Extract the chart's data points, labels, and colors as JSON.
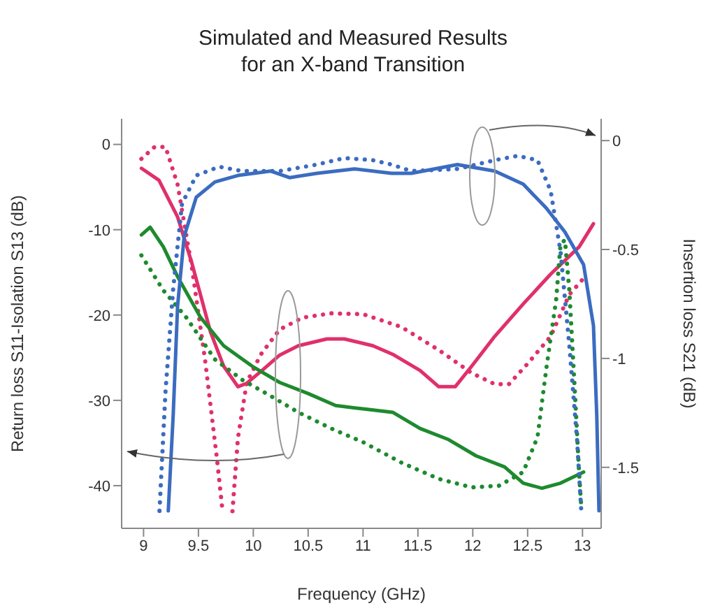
{
  "chart_data": {
    "type": "line",
    "title": "Simulated and Measured Results\nfor an X-band Transition",
    "xlabel": "Frequency (GHz)",
    "ylabel": "Return loss S11-Isolation S13 (dB)",
    "y2label": "Insertion loss S21 (dB)",
    "xlim": [
      8.8,
      13.17
    ],
    "xticks": [
      9,
      9.5,
      10,
      10.5,
      11,
      11.5,
      12,
      12.5,
      13
    ],
    "ylim": [
      -45,
      3
    ],
    "yticks": [
      0,
      -10,
      -20,
      -30,
      -40
    ],
    "y2lim": [
      -1.78,
      0.1
    ],
    "y2ticks": [
      0,
      -0.5,
      -1,
      -1.5
    ],
    "grid": false,
    "legend": false,
    "marker": "none",
    "series": [
      {
        "color": "#e0306a",
        "line_style": "solid",
        "x": [
          8.98,
          9.14,
          9.31,
          9.44,
          9.52,
          9.61,
          9.73,
          9.86,
          9.94,
          10.07,
          10.24,
          10.41,
          10.67,
          10.83,
          11.09,
          11.27,
          11.52,
          11.69,
          11.84,
          11.99,
          12.2,
          12.46,
          12.71,
          12.97,
          13.1
        ],
        "values": [
          -2.8,
          -4.2,
          -8.5,
          -13.9,
          -17.7,
          -22,
          -26,
          -28.4,
          -28,
          -26.6,
          -24.7,
          -23.6,
          -22.8,
          -22.8,
          -23.6,
          -24.6,
          -26.5,
          -28.4,
          -28.4,
          -26,
          -22.5,
          -18.7,
          -15.2,
          -12,
          -9.3
        ]
      },
      {
        "color": "#e0306a",
        "line_style": "dotted",
        "x": [
          8.98,
          9.1,
          9.2,
          9.31,
          9.44,
          9.56,
          9.67,
          9.72,
          9.765,
          9.81,
          9.86,
          9.94,
          10.07,
          10.24,
          10.45,
          10.71,
          11.0,
          11.35,
          11.69,
          11.99,
          12.2,
          12.33,
          12.5,
          12.71,
          12.88,
          13.01
        ],
        "values": [
          -1.7,
          -0.3,
          -0.3,
          -4.7,
          -14.4,
          -25.2,
          -37,
          -43,
          null,
          -43,
          -34.4,
          -27.9,
          -24.6,
          -21.7,
          -20.3,
          -19.8,
          -19.9,
          -21.4,
          -24.1,
          -26.8,
          -28.1,
          -28.1,
          -25.7,
          -22.5,
          -17.6,
          -15.7
        ]
      },
      {
        "color": "#1e8a2e",
        "line_style": "solid",
        "x": [
          8.98,
          9.06,
          9.18,
          9.31,
          9.52,
          9.73,
          9.99,
          10.24,
          10.5,
          10.75,
          11.0,
          11.27,
          11.52,
          11.78,
          12.03,
          12.29,
          12.46,
          12.63,
          12.8,
          13.01
        ],
        "values": [
          -10.6,
          -9.7,
          -12,
          -15.5,
          -20.3,
          -23.6,
          -26,
          -27.9,
          -29.2,
          -30.6,
          -31,
          -31.4,
          -33.3,
          -34.6,
          -36.5,
          -37.8,
          -39.7,
          -40.3,
          -39.7,
          -38.4
        ]
      },
      {
        "color": "#1e8a2e",
        "line_style": "dotted",
        "x": [
          8.98,
          9.18,
          9.39,
          9.65,
          9.9,
          10.16,
          10.41,
          10.71,
          11.0,
          11.35,
          11.69,
          11.99,
          12.24,
          12.46,
          12.59,
          12.67,
          12.76,
          12.8,
          12.84,
          12.88,
          12.93,
          12.97,
          12.99
        ],
        "values": [
          -13,
          -17.1,
          -20.3,
          -25.2,
          -27.6,
          -29.5,
          -31.4,
          -33.3,
          -34.9,
          -37.3,
          -39.2,
          -40.2,
          -40,
          -38.4,
          -34.3,
          -26.3,
          -18.2,
          -11.7,
          -11.2,
          -17.1,
          -28.9,
          -38.7,
          -42.7
        ]
      },
      {
        "color": "#3b6cc0",
        "line_style": "solid",
        "axis": "y2",
        "x": [
          9.225,
          9.27,
          9.31,
          9.37,
          9.48,
          9.65,
          9.86,
          10.16,
          10.33,
          10.58,
          10.92,
          11.26,
          11.44,
          11.86,
          12.2,
          12.46,
          12.67,
          12.84,
          13.01,
          13.1,
          13.13,
          13.15
        ],
        "values": [
          -1.7,
          -1.26,
          -0.76,
          -0.44,
          -0.26,
          -0.19,
          -0.16,
          -0.14,
          -0.17,
          -0.15,
          -0.13,
          -0.15,
          -0.15,
          -0.11,
          -0.14,
          -0.2,
          -0.31,
          -0.42,
          -0.57,
          -0.85,
          -1.26,
          -1.7
        ]
      },
      {
        "color": "#3b6cc0",
        "line_style": "dotted",
        "axis": "y2",
        "x": [
          9.145,
          9.2,
          9.27,
          9.35,
          9.48,
          9.69,
          9.9,
          10.24,
          10.58,
          10.83,
          11.09,
          11.26,
          11.44,
          11.86,
          12.2,
          12.41,
          12.59,
          12.71,
          12.8,
          12.88,
          12.95,
          12.99
        ],
        "values": [
          -1.7,
          -1.15,
          -0.68,
          -0.29,
          -0.16,
          -0.12,
          -0.14,
          -0.14,
          -0.11,
          -0.08,
          -0.09,
          -0.11,
          -0.14,
          -0.13,
          -0.09,
          -0.07,
          -0.09,
          -0.23,
          -0.51,
          -0.94,
          -1.37,
          -1.71
        ]
      }
    ]
  }
}
